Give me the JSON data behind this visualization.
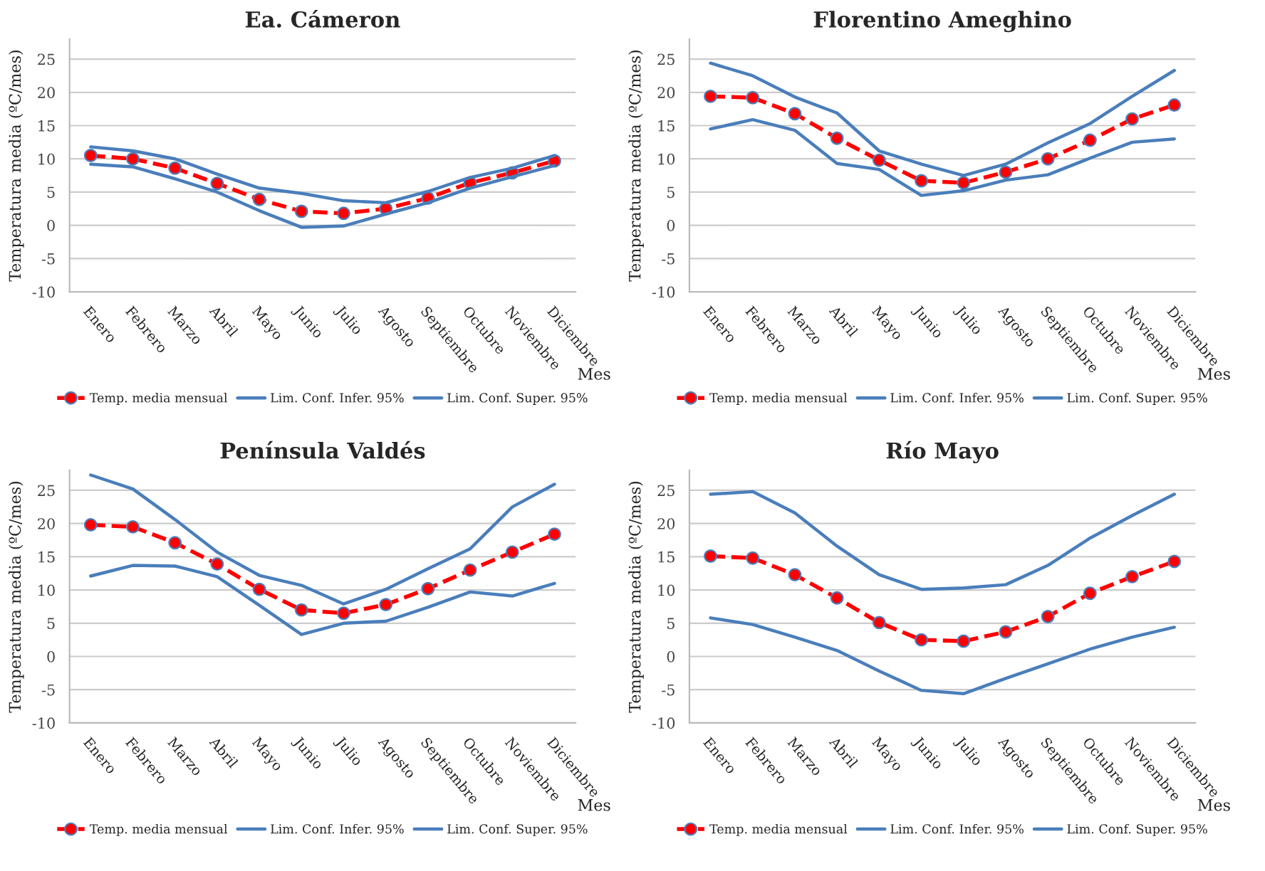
{
  "chart_data": [
    {
      "type": "line",
      "title": "Ea. Cámeron",
      "xlabel": "Mes",
      "ylabel": "Temperatura media (ºC/mes)",
      "categories": [
        "Enero",
        "Febrero",
        "Marzo",
        "Abril",
        "Mayo",
        "Junio",
        "Julio",
        "Agosto",
        "Septiembre",
        "Octubre",
        "Noviembre",
        "Diciembre"
      ],
      "ylim": [
        -10,
        28
      ],
      "yticks": [
        -10,
        -5,
        0,
        5,
        10,
        15,
        20,
        25
      ],
      "grid": "y",
      "legend": "bottom",
      "series": [
        {
          "name": "Temp. media mensual",
          "color": "#ff0000",
          "marker": "circle",
          "line_style": "dashed",
          "values": [
            10.5,
            10,
            8.6,
            6.3,
            3.9,
            2.1,
            1.8,
            2.5,
            4.1,
            6.4,
            7.9,
            9.7
          ]
        },
        {
          "name": "Lim. Conf. Infer. 95%",
          "color": "#4a7ebb",
          "values": [
            9.2,
            8.8,
            7,
            5,
            2.2,
            -0.3,
            -0.1,
            1.7,
            3.4,
            5.6,
            7.3,
            9
          ]
        },
        {
          "name": "Lim. Conf. Super. 95%",
          "color": "#4a7ebb",
          "values": [
            11.8,
            11.2,
            10,
            7.7,
            5.6,
            4.8,
            3.7,
            3.4,
            5.1,
            7.2,
            8.6,
            10.5
          ]
        }
      ]
    },
    {
      "type": "line",
      "title": "Florentino Ameghino",
      "xlabel": "Mes",
      "ylabel": "Temperatura media (ºC/mes)",
      "categories": [
        "Enero",
        "Febrero",
        "Marzo",
        "Abril",
        "Mayo",
        "Junio",
        "Julio",
        "Agosto",
        "Septiembre",
        "Octubre",
        "Noviembre",
        "Diciembre"
      ],
      "ylim": [
        -10,
        28
      ],
      "yticks": [
        -10,
        -5,
        0,
        5,
        10,
        15,
        20,
        25
      ],
      "grid": "y",
      "legend": "bottom",
      "series": [
        {
          "name": "Temp. media mensual",
          "color": "#ff0000",
          "marker": "circle",
          "line_style": "dashed",
          "values": [
            19.4,
            19.2,
            16.8,
            13.1,
            9.8,
            6.7,
            6.4,
            8,
            10,
            12.8,
            16,
            18.1
          ]
        },
        {
          "name": "Lim. Conf. Infer. 95%",
          "color": "#4a7ebb",
          "values": [
            14.5,
            15.9,
            14.3,
            9.3,
            8.4,
            4.5,
            5.2,
            6.8,
            7.6,
            10.1,
            12.5,
            13
          ]
        },
        {
          "name": "Lim. Conf. Super. 95%",
          "color": "#4a7ebb",
          "values": [
            24.4,
            22.5,
            19.3,
            16.9,
            11.2,
            9.2,
            7.5,
            9.2,
            12.4,
            15.3,
            19.4,
            23.3
          ]
        }
      ]
    },
    {
      "type": "line",
      "title": "Península Valdés",
      "xlabel": "Mes",
      "ylabel": "Temperatura media (ºC/mes)",
      "categories": [
        "Enero",
        "Febrero",
        "Marzo",
        "Abril",
        "Mayo",
        "Junio",
        "Julio",
        "Agosto",
        "Septiembre",
        "Octubre",
        "Noviembre",
        "Diciembre"
      ],
      "ylim": [
        -10,
        28
      ],
      "yticks": [
        -10,
        -5,
        0,
        5,
        10,
        15,
        20,
        25
      ],
      "grid": "y",
      "legend": "bottom",
      "series": [
        {
          "name": "Temp. media mensual",
          "color": "#ff0000",
          "marker": "circle",
          "line_style": "dashed",
          "values": [
            19.8,
            19.5,
            17.1,
            13.9,
            10.1,
            7,
            6.5,
            7.8,
            10.2,
            13,
            15.7,
            18.4
          ]
        },
        {
          "name": "Lim. Conf. Infer. 95%",
          "color": "#4a7ebb",
          "values": [
            12.1,
            13.7,
            13.6,
            12,
            7.7,
            3.3,
            5,
            5.3,
            7.4,
            9.7,
            9.1,
            11
          ]
        },
        {
          "name": "Lim. Conf. Super. 95%",
          "color": "#4a7ebb",
          "values": [
            27.3,
            25.2,
            20.6,
            15.7,
            12.2,
            10.7,
            7.9,
            10.1,
            13.2,
            16.2,
            22.5,
            25.9
          ]
        }
      ]
    },
    {
      "type": "line",
      "title": "Río Mayo",
      "xlabel": "Mes",
      "ylabel": "Temperatura media (ºC/mes)",
      "categories": [
        "Enero",
        "Febrero",
        "Marzo",
        "Abril",
        "Mayo",
        "Junio",
        "Julio",
        "Agosto",
        "Septiembre",
        "Octubre",
        "Noviembre",
        "Diciembre"
      ],
      "ylim": [
        -10,
        28
      ],
      "yticks": [
        -10,
        -5,
        0,
        5,
        10,
        15,
        20,
        25
      ],
      "grid": "y",
      "legend": "bottom",
      "series": [
        {
          "name": "Temp. media mensual",
          "color": "#ff0000",
          "marker": "circle",
          "line_style": "dashed",
          "values": [
            15.1,
            14.8,
            12.3,
            8.8,
            5.1,
            2.5,
            2.3,
            3.7,
            6,
            9.5,
            12,
            14.3
          ]
        },
        {
          "name": "Lim. Conf. Infer. 95%",
          "color": "#4a7ebb",
          "values": [
            5.8,
            4.8,
            2.9,
            0.9,
            -2.2,
            -5.1,
            -5.6,
            -3.3,
            -1.1,
            1.1,
            2.9,
            4.4
          ]
        },
        {
          "name": "Lim. Conf. Super. 95%",
          "color": "#4a7ebb",
          "values": [
            24.4,
            24.8,
            21.6,
            16.6,
            12.3,
            10.1,
            10.3,
            10.8,
            13.7,
            17.8,
            21.2,
            24.4
          ]
        }
      ]
    }
  ]
}
